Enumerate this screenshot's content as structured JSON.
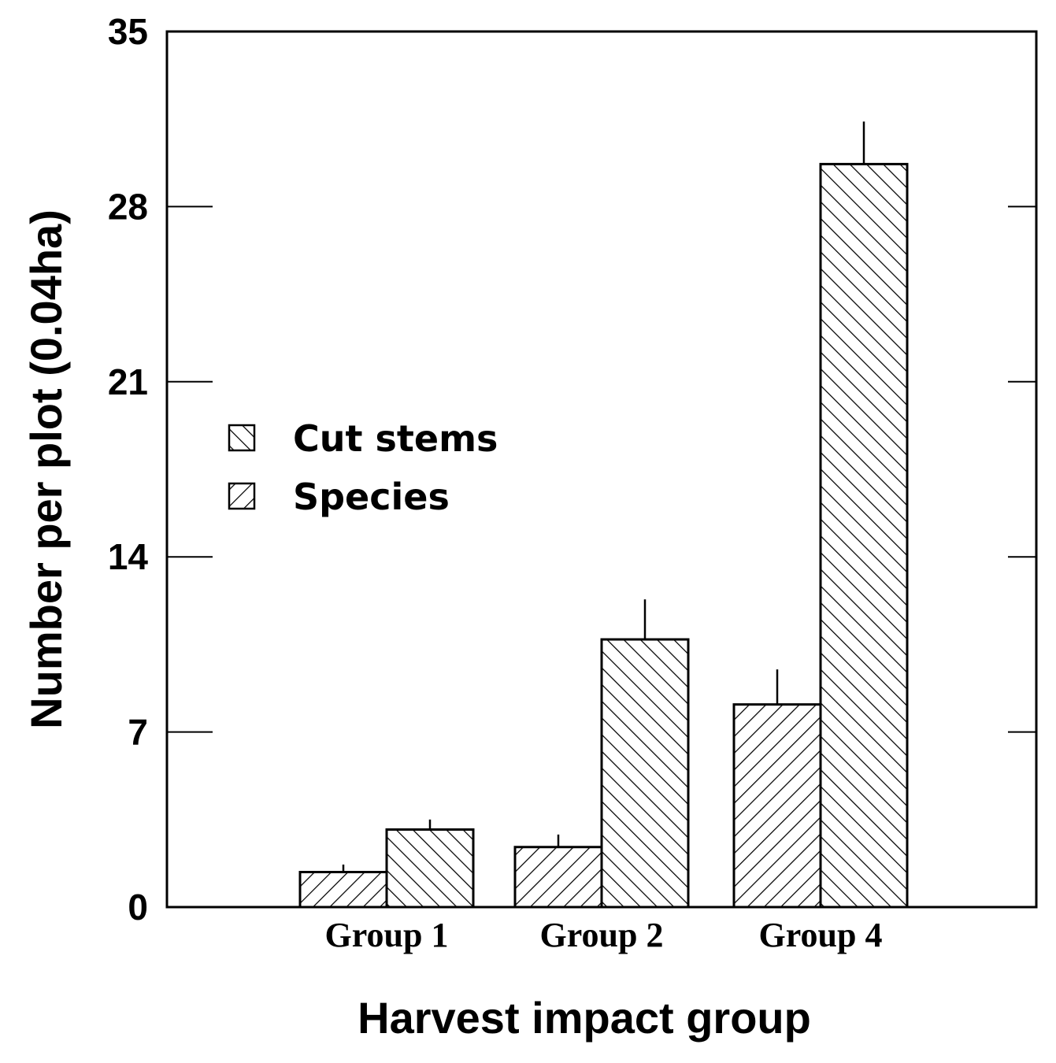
{
  "chart_data": {
    "type": "bar",
    "categories": [
      "Group 1",
      "Group 2",
      "Group 4"
    ],
    "series": [
      {
        "name": "Species",
        "values": [
          1.4,
          2.4,
          8.1
        ],
        "errors": [
          0.3,
          0.5,
          1.4
        ],
        "hatch": "forward"
      },
      {
        "name": "Cut stems",
        "values": [
          3.1,
          10.7,
          29.7
        ],
        "errors": [
          0.4,
          1.6,
          1.7
        ],
        "hatch": "backward"
      }
    ],
    "xlabel": "Harvest impact group",
    "ylabel": "Number per plot (0.04ha)",
    "ylim": [
      0,
      35
    ],
    "yticks": [
      0,
      7,
      14,
      21,
      28,
      35
    ],
    "legend": {
      "position": "left-middle",
      "entries": [
        {
          "label": "Cut stems",
          "hatch": "backward"
        },
        {
          "label": "Species",
          "hatch": "forward"
        }
      ]
    },
    "grid": false,
    "colors": {
      "bar_fill": "#ffffff",
      "line": "#000000"
    }
  }
}
